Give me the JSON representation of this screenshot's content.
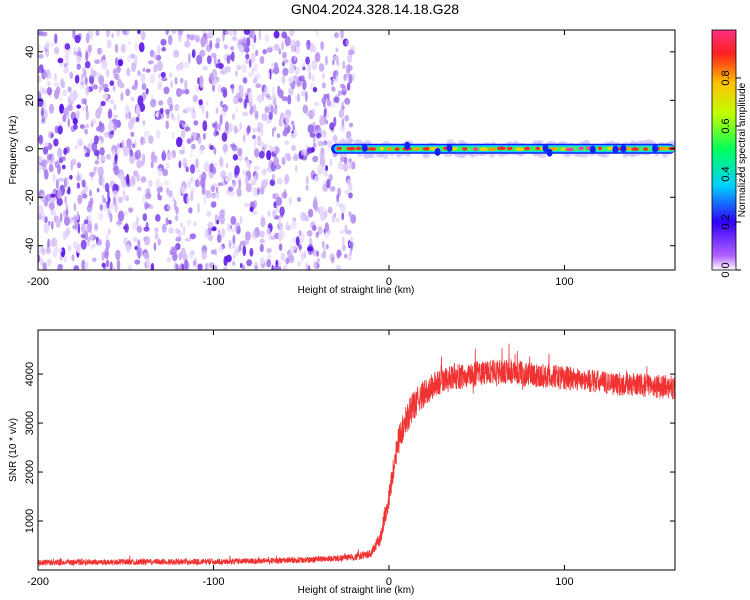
{
  "title": "GN04.2024.328.14.18.G28",
  "chart_data": [
    {
      "type": "heatmap",
      "xlabel": "Height of straight line (km)",
      "ylabel": "Frequency (Hz)",
      "xlim": [
        -200,
        163
      ],
      "ylim": [
        -50,
        49
      ],
      "x_ticks": [
        -200,
        -100,
        0,
        100
      ],
      "y_ticks": [
        -40,
        -20,
        0,
        20,
        40
      ],
      "noise_region_x": [
        -200,
        -20
      ],
      "signal_track": {
        "x_start": -33,
        "x_end": 163,
        "frequency": 0
      },
      "colorbar": {
        "label": "Normalized spectral amplitude",
        "range": [
          0,
          1
        ],
        "ticks": [
          "0.0",
          "0.2",
          "0.4",
          "0.6",
          "0.8"
        ]
      }
    },
    {
      "type": "line",
      "xlabel": "Height of straight line (km)",
      "ylabel": "SNR (10 * v/v)",
      "xlim": [
        -200,
        163
      ],
      "ylim": [
        0,
        4900
      ],
      "x_ticks": [
        -200,
        -100,
        0,
        100
      ],
      "y_ticks": [
        1000,
        2000,
        3000,
        4000
      ],
      "color": "#f03232",
      "x": [
        -200,
        -150,
        -100,
        -50,
        -20,
        -10,
        -5,
        0,
        5,
        10,
        15,
        20,
        25,
        30,
        40,
        50,
        60,
        70,
        80,
        90,
        100,
        110,
        120,
        130,
        140,
        150,
        163
      ],
      "y": [
        150,
        165,
        170,
        200,
        260,
        340,
        650,
        1500,
        2600,
        3100,
        3400,
        3600,
        3750,
        3850,
        3950,
        4000,
        4050,
        4030,
        4000,
        3950,
        3930,
        3880,
        3840,
        3800,
        3780,
        3760,
        3720
      ],
      "noise_amplitude": [
        60,
        60,
        60,
        60,
        70,
        90,
        150,
        250,
        280,
        300,
        300,
        280,
        280,
        270,
        260,
        260,
        260,
        250,
        250,
        250,
        250,
        240,
        240,
        240,
        240,
        240,
        240
      ]
    }
  ]
}
